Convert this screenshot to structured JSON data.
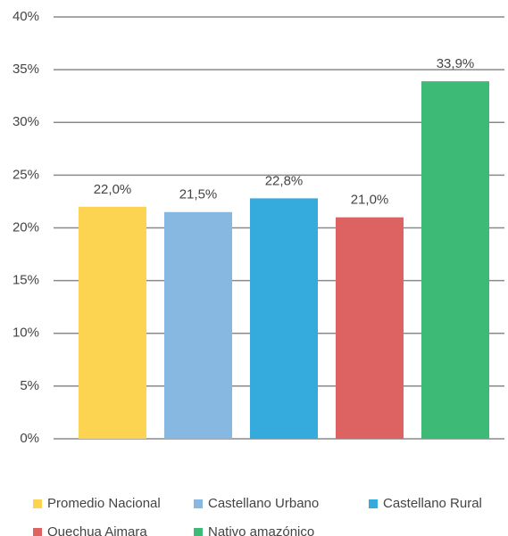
{
  "chart_data": {
    "type": "bar",
    "series": [
      {
        "name": "Promedio Nacional",
        "color": "#fdd452",
        "values": [
          22.0
        ],
        "value_labels": [
          "22,0%"
        ]
      },
      {
        "name": "Castellano Urbano",
        "color": "#86b8e1",
        "values": [
          21.5
        ],
        "value_labels": [
          "21,5%"
        ]
      },
      {
        "name": "Castellano Rural",
        "color": "#35abdd",
        "values": [
          22.8
        ],
        "value_labels": [
          "22,8%"
        ]
      },
      {
        "name": "Quechua Aimara",
        "color": "#dd6262",
        "values": [
          21.0
        ],
        "value_labels": [
          "21,0%"
        ]
      },
      {
        "name": "Nativo amazónico",
        "color": "#3dbb76",
        "values": [
          33.9
        ],
        "value_labels": [
          "33,9%"
        ]
      }
    ],
    "ylim": [
      0,
      40
    ],
    "yticks": [
      {
        "value": 0,
        "label": "0%"
      },
      {
        "value": 5,
        "label": "5%"
      },
      {
        "value": 10,
        "label": "10%"
      },
      {
        "value": 15,
        "label": "15%"
      },
      {
        "value": 20,
        "label": "20%"
      },
      {
        "value": 25,
        "label": "25%"
      },
      {
        "value": 30,
        "label": "30%"
      },
      {
        "value": 35,
        "label": "35%"
      },
      {
        "value": 40,
        "label": "40%"
      }
    ],
    "grid": true
  }
}
